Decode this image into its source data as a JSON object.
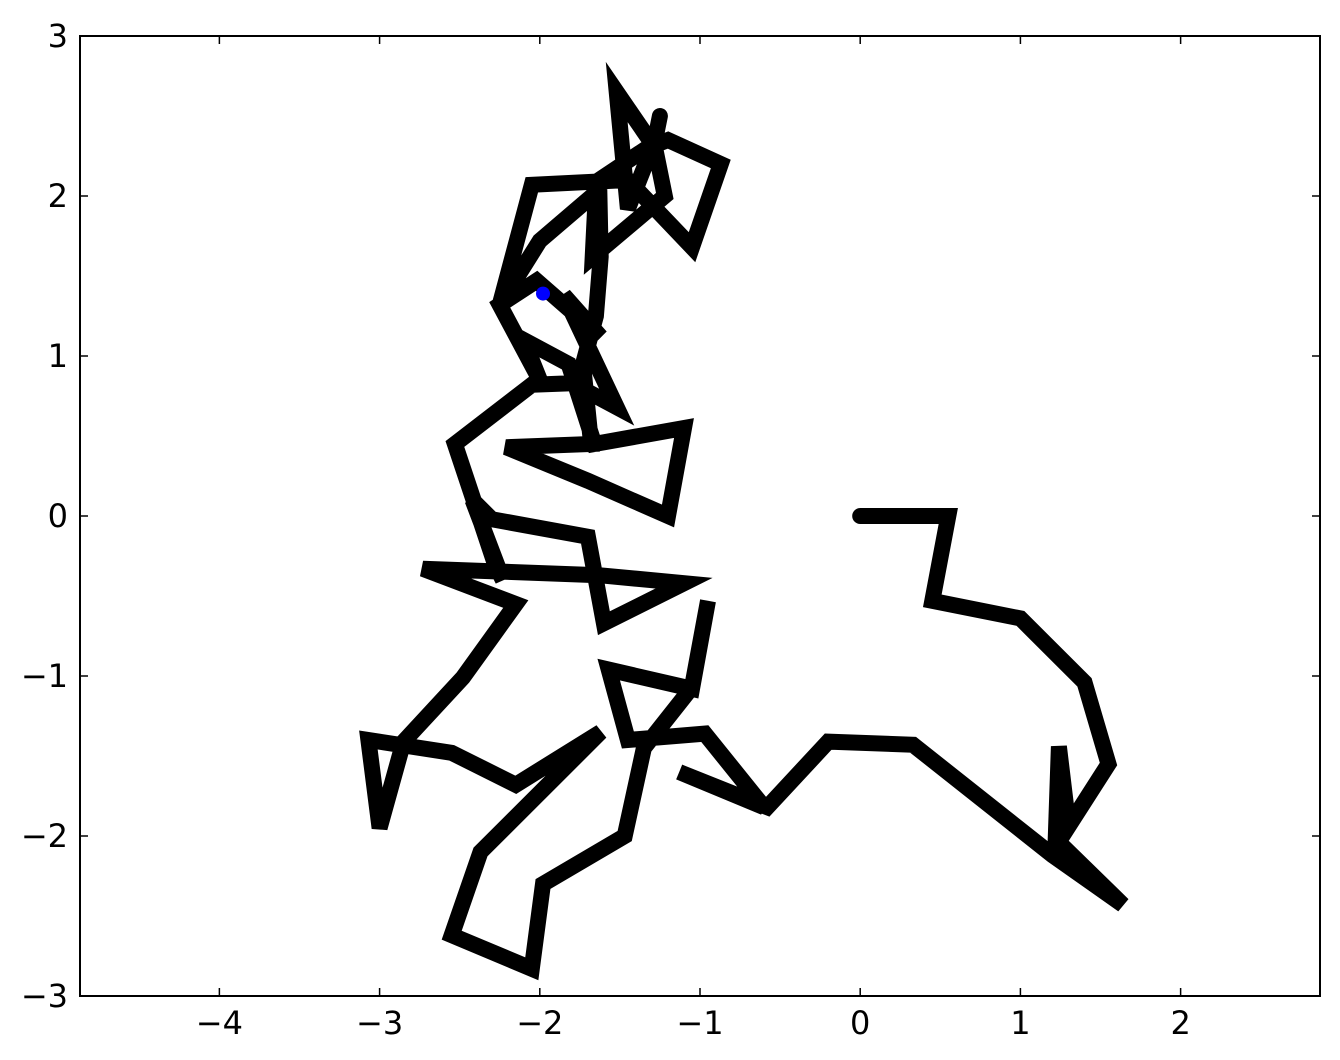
{
  "chart_data": {
    "type": "line",
    "title": "",
    "xlabel": "",
    "ylabel": "",
    "xlim": [
      -4.87,
      2.87
    ],
    "ylim": [
      -3,
      3
    ],
    "grid": false,
    "legend": "none",
    "x_ticks": [
      -4,
      -3,
      -2,
      -1,
      0,
      1,
      2
    ],
    "x_tick_labels": [
      "−4",
      "−3",
      "−2",
      "−1",
      "0",
      "1",
      "2"
    ],
    "y_ticks": [
      -3,
      -2,
      -1,
      0,
      1,
      2,
      3
    ],
    "y_tick_labels": [
      "−3",
      "−2",
      "−1",
      "0",
      "1",
      "2",
      "3"
    ],
    "series": [
      {
        "kind": "path",
        "color": "#000000",
        "points": [
          [
            0.0,
            0.0
          ],
          [
            0.55,
            0.0
          ],
          [
            0.45,
            -0.53
          ],
          [
            1.0,
            -0.64
          ],
          [
            1.4,
            -1.04
          ],
          [
            1.55,
            -1.55
          ],
          [
            1.3,
            -1.94
          ],
          [
            1.24,
            -1.44
          ],
          [
            1.22,
            -2.02
          ],
          [
            1.64,
            -2.43
          ],
          [
            1.2,
            -2.12
          ],
          [
            0.33,
            -1.43
          ],
          [
            -0.2,
            -1.41
          ],
          [
            -0.58,
            -1.82
          ],
          [
            -1.13,
            -1.6
          ],
          [
            -0.6,
            -1.82
          ],
          [
            -0.97,
            -1.36
          ],
          [
            -1.45,
            -1.4
          ],
          [
            -1.57,
            -0.96
          ],
          [
            -1.05,
            -1.08
          ],
          [
            -0.95,
            -0.53
          ],
          [
            -1.05,
            -1.07
          ],
          [
            -1.35,
            -1.45
          ],
          [
            -1.47,
            -2.0
          ],
          [
            -1.98,
            -2.3
          ],
          [
            -2.05,
            -2.83
          ],
          [
            -2.55,
            -2.62
          ],
          [
            -2.37,
            -2.1
          ],
          [
            -1.62,
            -1.35
          ],
          [
            -2.15,
            -1.68
          ],
          [
            -2.55,
            -1.48
          ],
          [
            -3.07,
            -1.4
          ],
          [
            -3.0,
            -1.95
          ],
          [
            -2.85,
            -1.41
          ],
          [
            -2.48,
            -1.01
          ],
          [
            -2.15,
            -0.55
          ],
          [
            -2.73,
            -0.33
          ],
          [
            -1.63,
            -0.37
          ],
          [
            -1.1,
            -0.42
          ],
          [
            -1.6,
            -0.67
          ],
          [
            -1.7,
            -0.13
          ],
          [
            -2.3,
            -0.02
          ],
          [
            -2.42,
            0.1
          ],
          [
            -2.23,
            -0.4
          ],
          [
            -2.28,
            -0.3
          ],
          [
            -2.53,
            0.45
          ],
          [
            -2.05,
            0.82
          ],
          [
            -1.8,
            0.83
          ],
          [
            -1.52,
            0.68
          ],
          [
            -1.85,
            1.38
          ],
          [
            -1.62,
            1.12
          ],
          [
            -2.02,
            1.47
          ],
          [
            -2.25,
            1.32
          ],
          [
            -2.0,
            0.85
          ],
          [
            -2.1,
            1.1
          ],
          [
            -1.82,
            0.95
          ],
          [
            -1.66,
            0.45
          ],
          [
            -1.1,
            0.55
          ],
          [
            -1.2,
            0.0
          ],
          [
            -1.7,
            0.22
          ],
          [
            -2.21,
            0.43
          ],
          [
            -1.68,
            0.45
          ],
          [
            -1.73,
            0.95
          ],
          [
            -1.65,
            1.25
          ],
          [
            -1.62,
            1.62
          ],
          [
            -1.63,
            2.1
          ],
          [
            -1.33,
            2.3
          ],
          [
            -1.2,
            2.35
          ],
          [
            -0.87,
            2.2
          ],
          [
            -1.05,
            1.68
          ],
          [
            -1.45,
            2.1
          ],
          [
            -2.05,
            2.07
          ],
          [
            -2.25,
            1.32
          ],
          [
            -2.0,
            1.72
          ],
          [
            -1.65,
            2.02
          ],
          [
            -1.67,
            1.62
          ],
          [
            -1.22,
            2.0
          ],
          [
            -1.28,
            2.3
          ],
          [
            -1.52,
            2.65
          ],
          [
            -1.45,
            1.92
          ],
          [
            -1.28,
            2.35
          ],
          [
            -1.25,
            2.5
          ]
        ]
      },
      {
        "kind": "marker",
        "color": "#0000ff",
        "points": [
          [
            -1.98,
            1.39
          ]
        ]
      }
    ]
  }
}
